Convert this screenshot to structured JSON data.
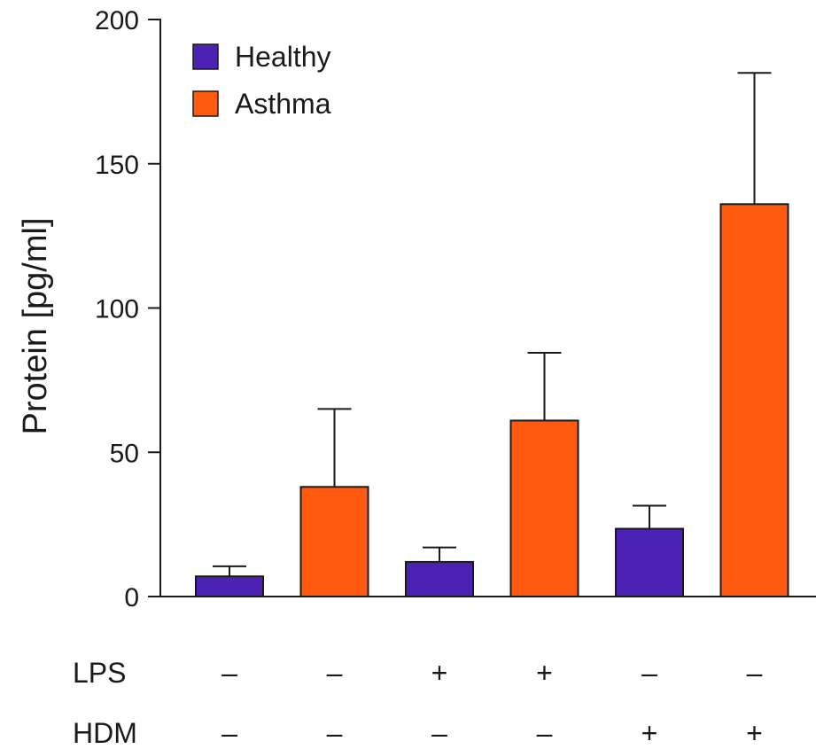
{
  "chart_data": {
    "type": "bar",
    "xlabel": "",
    "ylabel": "Protein  [pg/ml]",
    "ylim": [
      0,
      200
    ],
    "yticks": [
      0,
      50,
      100,
      150,
      200
    ],
    "legend_position": "top-left",
    "bars": [
      {
        "series": "Healthy",
        "value": 7,
        "error": 3.5
      },
      {
        "series": "Asthma",
        "value": 38,
        "error": 27
      },
      {
        "series": "Healthy",
        "value": 12,
        "error": 5
      },
      {
        "series": "Asthma",
        "value": 61,
        "error": 23.5
      },
      {
        "series": "Healthy",
        "value": 23.5,
        "error": 8
      },
      {
        "series": "Asthma",
        "value": 136,
        "error": 45.5
      }
    ],
    "series": [
      {
        "name": "Healthy",
        "color": "#4b22b4"
      },
      {
        "name": "Asthma",
        "color": "#ff5a0f"
      }
    ],
    "conditions": [
      {
        "label": "LPS",
        "values": [
          "–",
          "–",
          "+",
          "+",
          "–",
          "–"
        ]
      },
      {
        "label": "HDM",
        "values": [
          "–",
          "–",
          "–",
          "–",
          "+",
          "+"
        ]
      }
    ]
  }
}
